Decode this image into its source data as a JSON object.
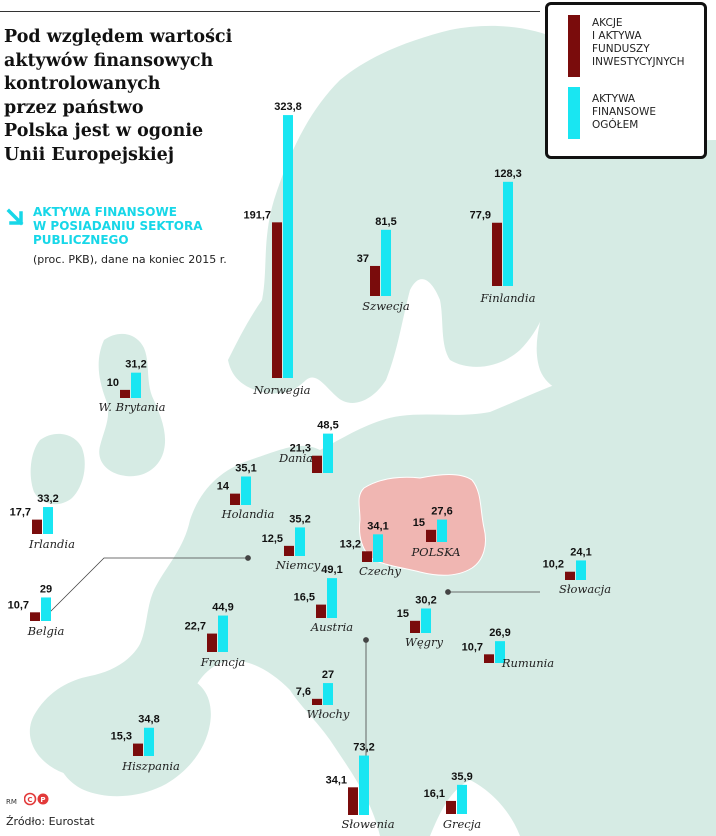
{
  "header": {
    "title": "Pod względem wartości\naktywów finansowych\nkontrolowanych\nprzez państwo\nPolska jest w ogonie\nUnii Europejskiej",
    "subtitle": "Aktywa finansowe\nw posiadaniu sektora\npublicznego",
    "units": "(proc. PKB), dane na koniec 2015 r."
  },
  "legend": [
    {
      "label": "Akcje\ni aktywa\nfunduszy\ninwestycyjnych",
      "color": "#7a0c0c"
    },
    {
      "label": "Aktywa\nfinansowe\nogółem",
      "color": "#19e6f2"
    }
  ],
  "footer": {
    "credit": "RM",
    "logo": "copyright-p-logo",
    "source": "Źródło: Eurostat"
  },
  "colors": {
    "map_land": "#d6ebe4",
    "map_sea": "#ffffff",
    "poland_highlight": "#f0b6b2",
    "series_shares": "#7a0c0c",
    "series_total": "#19e6f2"
  },
  "chart_data": {
    "type": "bar",
    "series": [
      {
        "name": "Akcje i aktywa funduszy inwestycyjnych",
        "color": "#7a0c0c"
      },
      {
        "name": "Aktywa finansowe ogółem",
        "color": "#19e6f2"
      }
    ],
    "categories": [
      "Norwegia",
      "Szwecja",
      "Finlandia",
      "W. Brytania",
      "Dania",
      "Irlandia",
      "Holandia",
      "Niemcy",
      "Czechy",
      "POLSKA",
      "Belgia",
      "Austria",
      "Słowacja",
      "Węgry",
      "Francja",
      "Rumunia",
      "Włochy",
      "Hiszpania",
      "Słowenia",
      "Grecja"
    ],
    "values": [
      [
        191.7,
        323.8
      ],
      [
        37,
        81.5
      ],
      [
        77.9,
        128.3
      ],
      [
        10,
        31.2
      ],
      [
        21.3,
        48.5
      ],
      [
        17.7,
        33.2
      ],
      [
        14,
        35.1
      ],
      [
        12.5,
        35.2
      ],
      [
        13.2,
        34.1
      ],
      [
        15,
        27.6
      ],
      [
        10.7,
        29
      ],
      [
        16.5,
        49.1
      ],
      [
        10.2,
        24.1
      ],
      [
        15,
        30.2
      ],
      [
        22.7,
        44.9
      ],
      [
        10.7,
        26.9
      ],
      [
        7.6,
        27
      ],
      [
        15.3,
        34.8
      ],
      [
        34.1,
        73.2
      ],
      [
        16.1,
        35.9
      ]
    ],
    "value_labels": [
      [
        "191,7",
        "323,8"
      ],
      [
        "37",
        "81,5"
      ],
      [
        "77,9",
        "128,3"
      ],
      [
        "10",
        "31,2"
      ],
      [
        "21,3",
        "48,5"
      ],
      [
        "17,7",
        "33,2"
      ],
      [
        "14",
        "35,1"
      ],
      [
        "12,5",
        "35,2"
      ],
      [
        "13,2",
        "34,1"
      ],
      [
        "15",
        "27,6"
      ],
      [
        "10,7",
        "29"
      ],
      [
        "16,5",
        "49,1"
      ],
      [
        "10,2",
        "24,1"
      ],
      [
        "15",
        "30,2"
      ],
      [
        "22,7",
        "44,9"
      ],
      [
        "10,7",
        "26,9"
      ],
      [
        "7,6",
        "27"
      ],
      [
        "15,3",
        "34,8"
      ],
      [
        "34,1",
        "73,2"
      ],
      [
        "16,1",
        "35,9"
      ]
    ],
    "highlight": "POLSKA",
    "title": "",
    "xlabel": "",
    "ylabel": "",
    "grid": false
  }
}
